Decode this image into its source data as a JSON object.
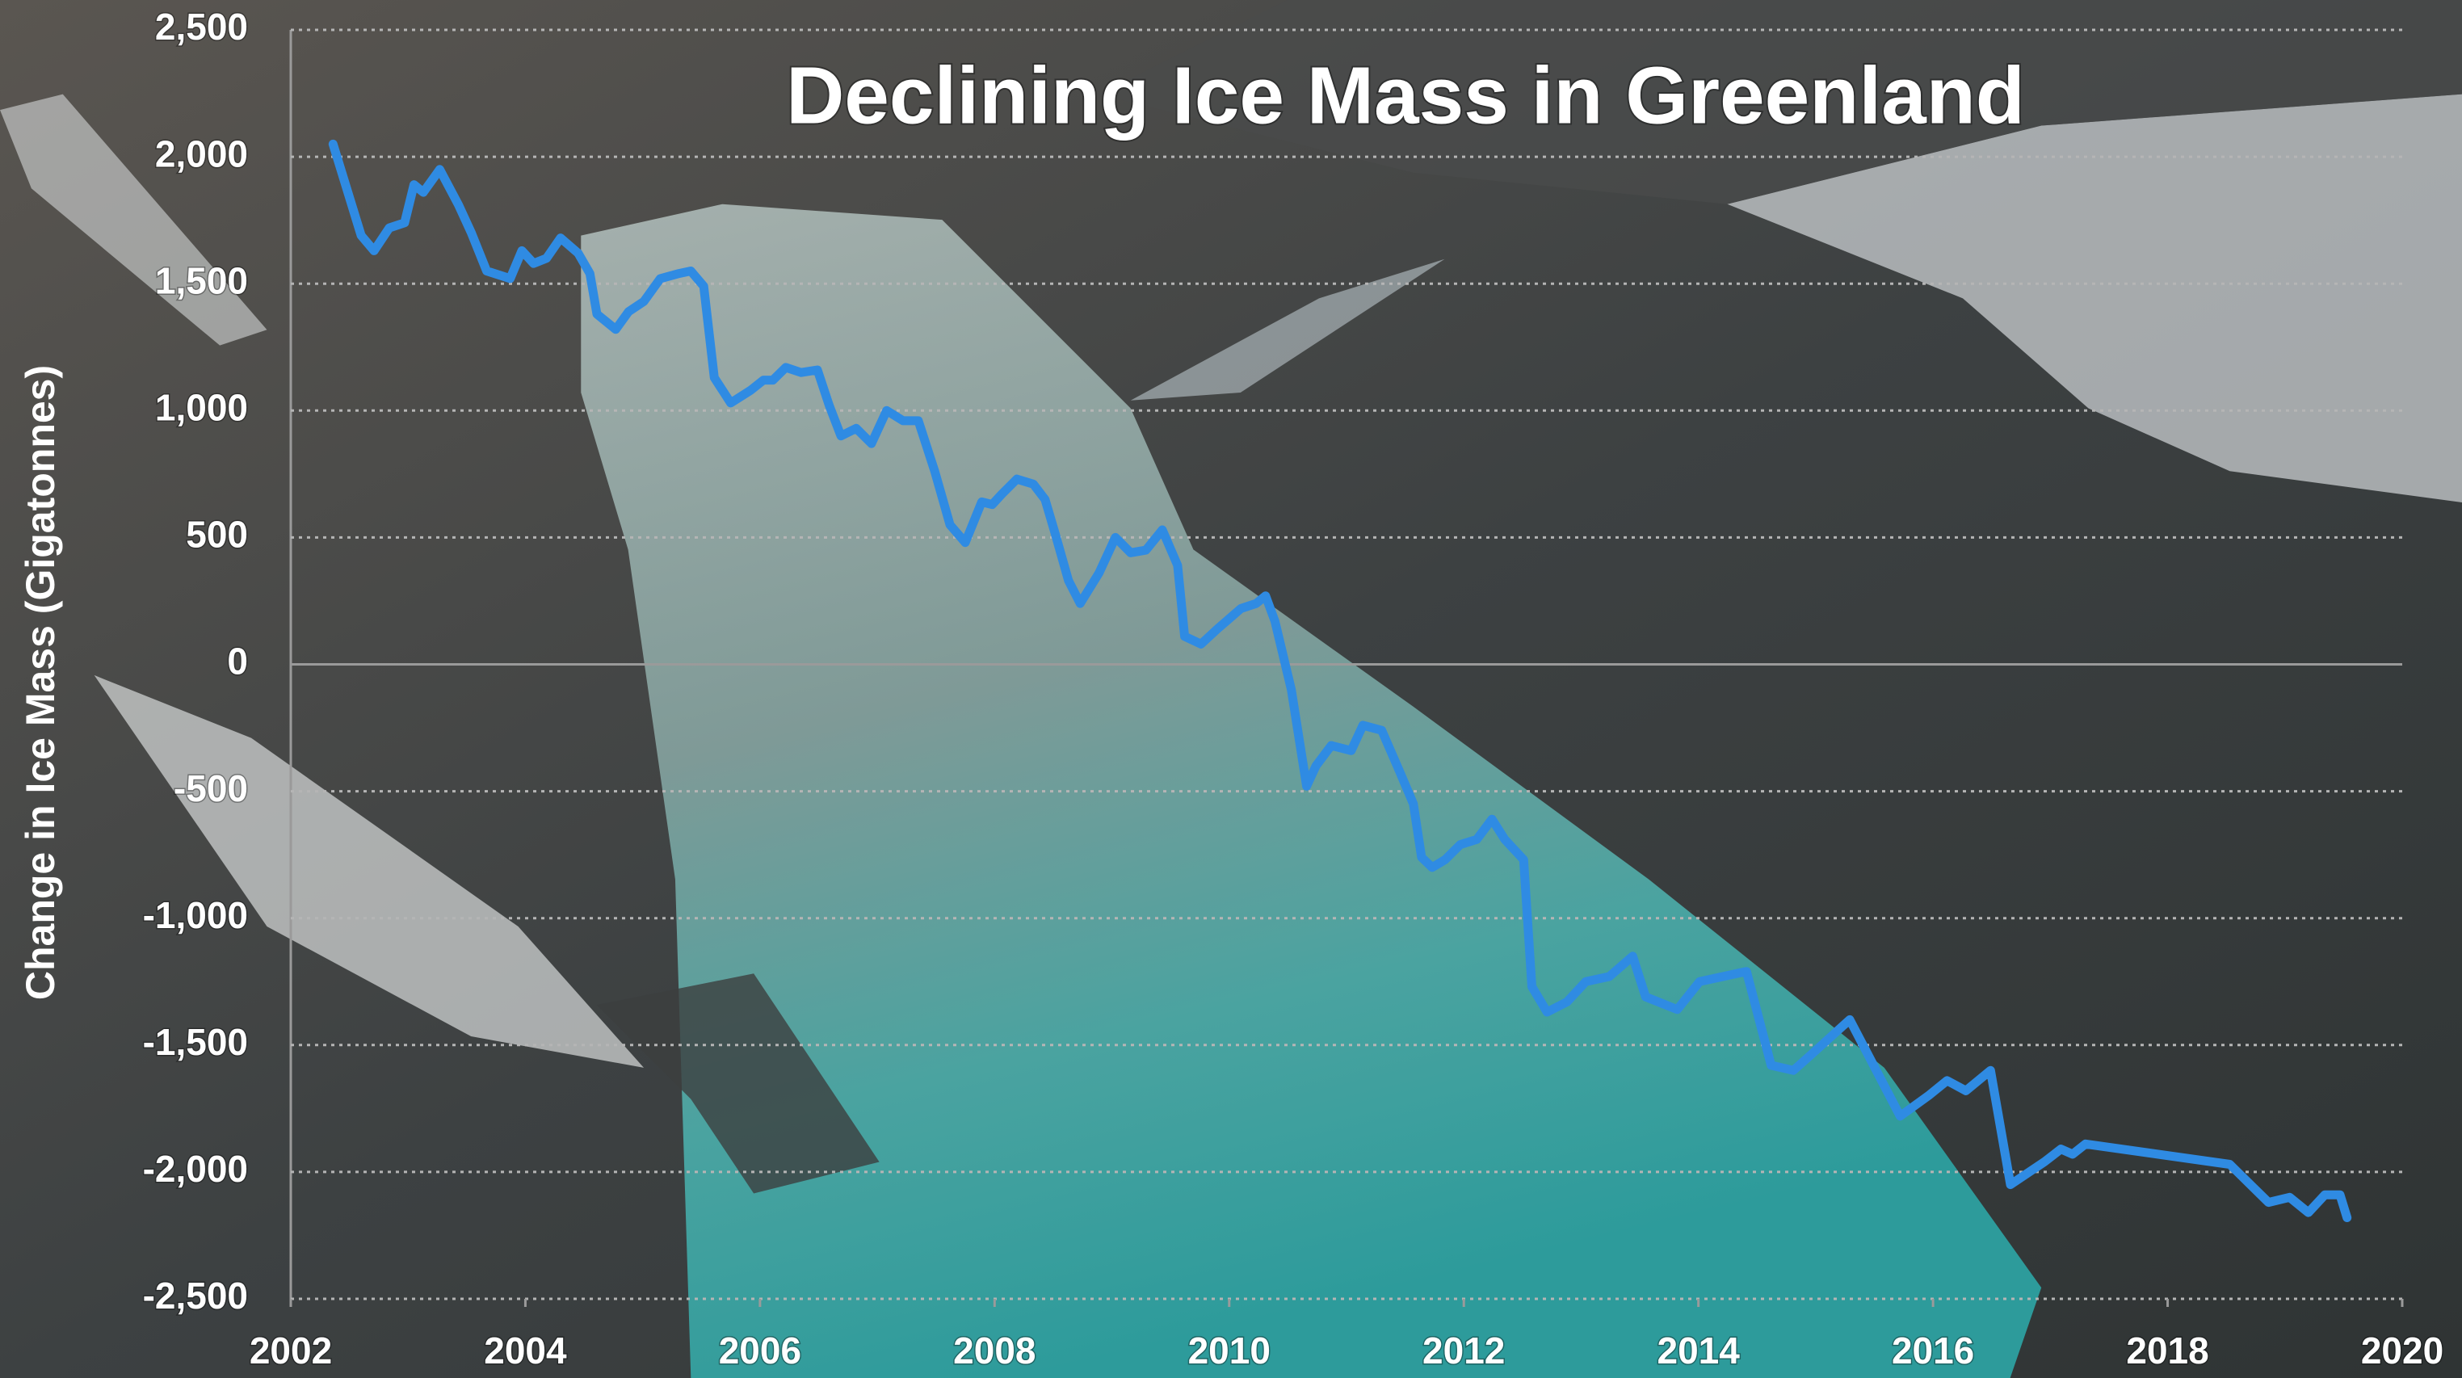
{
  "chart_data": {
    "type": "line",
    "title": "Declining Ice Mass in Greenland",
    "y_label": "Change in Ice Mass (Gigatonnes)",
    "color": "#2f8be3",
    "grid": true,
    "xlim": [
      2002,
      2020
    ],
    "xticks": [
      2002,
      2004,
      2006,
      2008,
      2010,
      2012,
      2014,
      2016,
      2018,
      2020
    ],
    "ylim": [
      -2500,
      2500
    ],
    "yticks": [
      {
        "value": -2500,
        "label": "-2,500"
      },
      {
        "value": -2000,
        "label": "-2,000"
      },
      {
        "value": -1500,
        "label": "-1,500"
      },
      {
        "value": -1000,
        "label": "-1,000"
      },
      -500,
      0,
      500,
      {
        "value": 1000,
        "label": "1,000"
      },
      {
        "value": 1500,
        "label": "1,500"
      },
      {
        "value": 2000,
        "label": "2,000"
      },
      {
        "value": 2500,
        "label": "2,500"
      }
    ],
    "x": [
      2002.36,
      2002.6,
      2002.71,
      2002.84,
      2002.97,
      2003.05,
      2003.13,
      2003.27,
      2003.43,
      2003.54,
      2003.67,
      2003.87,
      2003.97,
      2004.07,
      2004.18,
      2004.3,
      2004.45,
      2004.55,
      2004.61,
      2004.77,
      2004.88,
      2005.01,
      2005.15,
      2005.31,
      2005.41,
      2005.52,
      2005.61,
      2005.75,
      2005.92,
      2006.03,
      2006.11,
      2006.22,
      2006.35,
      2006.49,
      2006.59,
      2006.69,
      2006.82,
      2006.95,
      2007.08,
      2007.22,
      2007.35,
      2007.49,
      2007.62,
      2007.75,
      2007.89,
      2007.98,
      2008.06,
      2008.19,
      2008.33,
      2008.43,
      2008.52,
      2008.63,
      2008.73,
      2008.89,
      2009.03,
      2009.16,
      2009.29,
      2009.43,
      2009.56,
      2009.62,
      2009.76,
      2009.9,
      2010.1,
      2010.23,
      2010.31,
      2010.39,
      2010.53,
      2010.66,
      2010.74,
      2010.87,
      2011.04,
      2011.14,
      2011.3,
      2011.46,
      2011.57,
      2011.64,
      2011.73,
      2011.84,
      2011.97,
      2012.11,
      2012.24,
      2012.35,
      2012.51,
      2012.58,
      2012.71,
      2012.88,
      2013.04,
      2013.24,
      2013.44,
      2013.55,
      2013.82,
      2014.01,
      2014.41,
      2014.62,
      2014.81,
      2014.98,
      2015.29,
      2015.72,
      2015.96,
      2016.12,
      2016.28,
      2016.49,
      2016.66,
      2016.95,
      2017.09,
      2017.19,
      2017.3,
      2018.53,
      2018.86,
      2019.04,
      2019.2,
      2019.34,
      2019.47,
      2019.53
    ],
    "values": [
      2050,
      1690,
      1630,
      1720,
      1740,
      1890,
      1860,
      1950,
      1810,
      1700,
      1550,
      1520,
      1630,
      1580,
      1600,
      1680,
      1620,
      1540,
      1380,
      1320,
      1390,
      1430,
      1520,
      1540,
      1550,
      1490,
      1130,
      1030,
      1080,
      1120,
      1120,
      1170,
      1150,
      1160,
      1020,
      900,
      930,
      870,
      1000,
      960,
      960,
      760,
      550,
      480,
      640,
      630,
      670,
      730,
      710,
      650,
      510,
      330,
      240,
      360,
      500,
      440,
      450,
      530,
      390,
      110,
      80,
      140,
      220,
      240,
      270,
      170,
      -100,
      -480,
      -400,
      -320,
      -340,
      -240,
      -260,
      -430,
      -550,
      -760,
      -800,
      -770,
      -710,
      -690,
      -610,
      -690,
      -770,
      -1270,
      -1370,
      -1330,
      -1250,
      -1230,
      -1150,
      -1310,
      -1360,
      -1250,
      -1210,
      -1580,
      -1600,
      -1530,
      -1400,
      -1780,
      -1700,
      -1640,
      -1680,
      -1600,
      -2050,
      -1960,
      -1910,
      -1930,
      -1890,
      -1970,
      -2120,
      -2100,
      -2160,
      -2090,
      -2090,
      -2180
    ]
  }
}
